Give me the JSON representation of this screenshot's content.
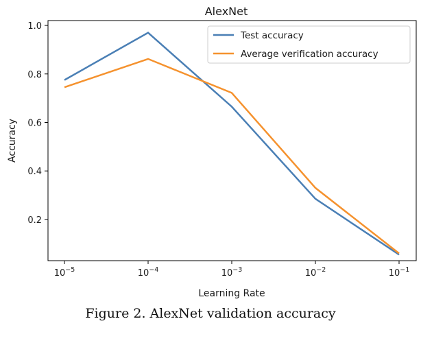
{
  "caption": "Figure 2. AlexNet validation accuracy",
  "chart_data": {
    "type": "line",
    "title": "AlexNet",
    "xlabel": "Learning Rate",
    "ylabel": "Accuracy",
    "xscale": "log",
    "x": [
      1e-05,
      0.0001,
      0.001,
      0.01,
      0.1
    ],
    "xtick_labels": [
      {
        "base": "10",
        "exp": "−5"
      },
      {
        "base": "10",
        "exp": "−4"
      },
      {
        "base": "10",
        "exp": "−3"
      },
      {
        "base": "10",
        "exp": "−2"
      },
      {
        "base": "10",
        "exp": "−1"
      }
    ],
    "yticks": [
      "0.2",
      "0.4",
      "0.6",
      "0.8",
      "1.0"
    ],
    "ylim": [
      0.03,
      1.02
    ],
    "legend_position": "top-right",
    "grid": false,
    "series": [
      {
        "name": "Test accuracy",
        "color": "#4a7fb5",
        "values": [
          0.775,
          0.97,
          0.665,
          0.285,
          0.055
        ]
      },
      {
        "name": "Average verification accuracy",
        "color": "#f5922e",
        "values": [
          0.745,
          0.862,
          0.722,
          0.33,
          0.06
        ]
      }
    ]
  }
}
